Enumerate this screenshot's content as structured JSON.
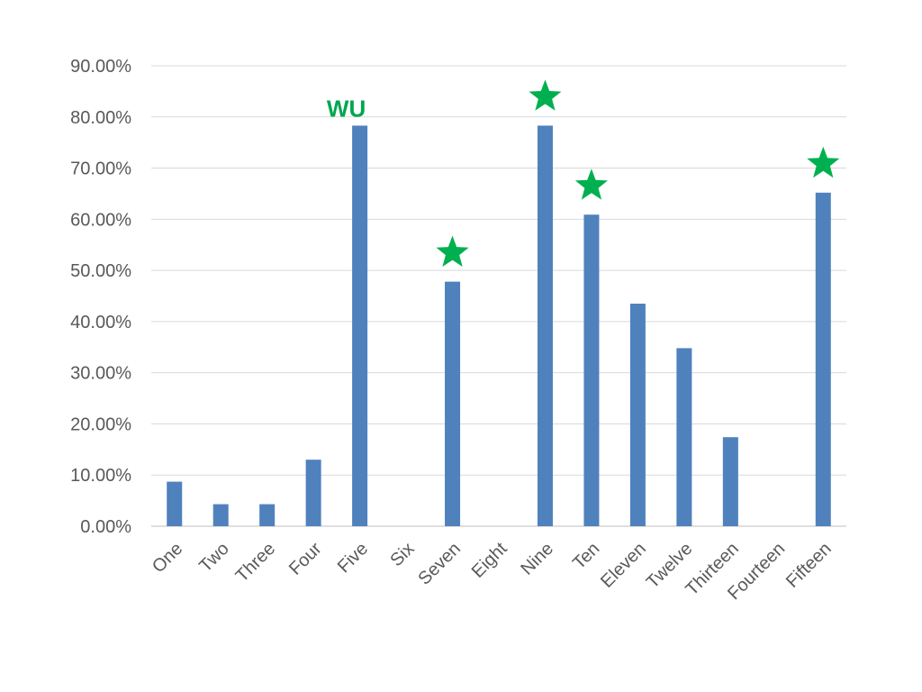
{
  "chart_data": {
    "type": "bar",
    "categories": [
      "One",
      "Two",
      "Three",
      "Four",
      "Five",
      "Six",
      "Seven",
      "Eight",
      "Nine",
      "Ten",
      "Eleven",
      "Twelve",
      "Thirteen",
      "Fourteen",
      "Fifteen"
    ],
    "values": [
      0.087,
      0.043,
      0.043,
      0.13,
      0.783,
      0,
      0.478,
      0,
      0.783,
      0.609,
      0.435,
      0.348,
      0.174,
      0,
      0.652
    ],
    "yticks": [
      0,
      0.1,
      0.2,
      0.3,
      0.4,
      0.5,
      0.6,
      0.7,
      0.8,
      0.9
    ],
    "ytick_labels": [
      "0.00%",
      "10.00%",
      "20.00%",
      "30.00%",
      "40.00%",
      "50.00%",
      "60.00%",
      "70.00%",
      "80.00%",
      "90.00%"
    ],
    "ylim": [
      0,
      0.9
    ],
    "grid": true,
    "legend": "none",
    "bar_color": "#4f81bd",
    "annotations": [
      {
        "category": "Five",
        "type": "text",
        "text": "WU",
        "color": "#00a651"
      },
      {
        "category": "Seven",
        "type": "star",
        "color": "#00b050"
      },
      {
        "category": "Nine",
        "type": "star",
        "color": "#00b050"
      },
      {
        "category": "Ten",
        "type": "star",
        "color": "#00b050"
      },
      {
        "category": "Fifteen",
        "type": "star",
        "color": "#00b050"
      }
    ]
  }
}
